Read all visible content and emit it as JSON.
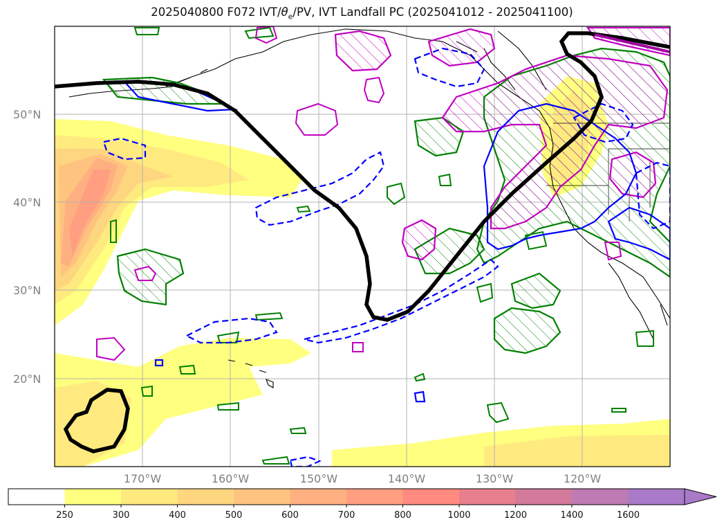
{
  "title": {
    "prefix": "2025040800 F072 IVT/",
    "theta": "θ",
    "theta_sub": "e",
    "suffix": "/PV, IVT Landfall PC (2025041012 - 2025041100)"
  },
  "map": {
    "lat_labels": [
      "50°N",
      "40°N",
      "30°N",
      "20°N"
    ],
    "lon_labels": [
      "170°W",
      "160°W",
      "150°W",
      "140°W",
      "130°W",
      "120°W"
    ],
    "gridlines": true
  },
  "colorbar": {
    "ticks": [
      "250",
      "300",
      "400",
      "500",
      "600",
      "700",
      "800",
      "1000",
      "1200",
      "1400",
      "1600"
    ],
    "colors": [
      "#ffffff",
      "#ffff80",
      "#ffea80",
      "#ffd680",
      "#ffc380",
      "#ffb080",
      "#ff9e80",
      "#ff8a80",
      "#e87f8c",
      "#d37a9c",
      "#be7ab2",
      "#a87ac8"
    ],
    "extend": "max"
  },
  "contour_colors": {
    "landfall_pc": "#000000",
    "theta_e": "#0000ff",
    "pv": "#008000",
    "pv_upper": "#c000c0"
  }
}
